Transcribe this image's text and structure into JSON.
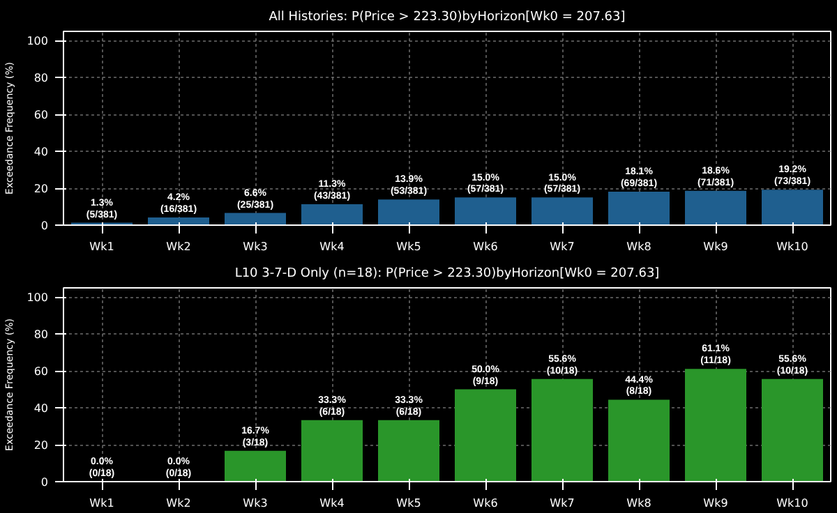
{
  "chart_data": [
    {
      "type": "bar",
      "title": "All Histories: P(Price > 223.30)byHorizon[Wk0 = 207.63]",
      "ylabel": "Exceedance Frequency (%)",
      "categories": [
        "Wk1",
        "Wk2",
        "Wk3",
        "Wk4",
        "Wk5",
        "Wk6",
        "Wk7",
        "Wk8",
        "Wk9",
        "Wk10"
      ],
      "values": [
        1.3,
        4.2,
        6.6,
        11.3,
        13.9,
        15.0,
        15.0,
        18.1,
        18.6,
        19.2
      ],
      "color": "#1f5f8f",
      "value_labels": [
        "1.3%\n(5/381)",
        "4.2%\n(16/381)",
        "6.6%\n(25/381)",
        "11.3%\n(43/381)",
        "13.9%\n(53/381)",
        "15.0%\n(57/381)",
        "15.0%\n(57/381)",
        "18.1%\n(69/381)",
        "18.6%\n(71/381)",
        "19.2%\n(73/381)"
      ],
      "ylim": [
        0,
        105
      ],
      "yticks": [
        0,
        20,
        40,
        60,
        80,
        100
      ],
      "grid": true
    },
    {
      "type": "bar",
      "title": "L10 3-7-D Only (n=18): P(Price > 223.30)byHorizon[Wk0 = 207.63]",
      "ylabel": "Exceedance Frequency (%)",
      "categories": [
        "Wk1",
        "Wk2",
        "Wk3",
        "Wk4",
        "Wk5",
        "Wk6",
        "Wk7",
        "Wk8",
        "Wk9",
        "Wk10"
      ],
      "values": [
        0.0,
        0.0,
        16.7,
        33.3,
        33.3,
        50.0,
        55.6,
        44.4,
        61.1,
        55.6
      ],
      "color": "#2a962a",
      "value_labels": [
        "0.0%\n(0/18)",
        "0.0%\n(0/18)",
        "16.7%\n(3/18)",
        "33.3%\n(6/18)",
        "33.3%\n(6/18)",
        "50.0%\n(9/18)",
        "55.6%\n(10/18)",
        "44.4%\n(8/18)",
        "61.1%\n(11/18)",
        "55.6%\n(10/18)"
      ],
      "ylim": [
        0,
        105
      ],
      "yticks": [
        0,
        20,
        40,
        60,
        80,
        100
      ],
      "grid": true
    }
  ]
}
